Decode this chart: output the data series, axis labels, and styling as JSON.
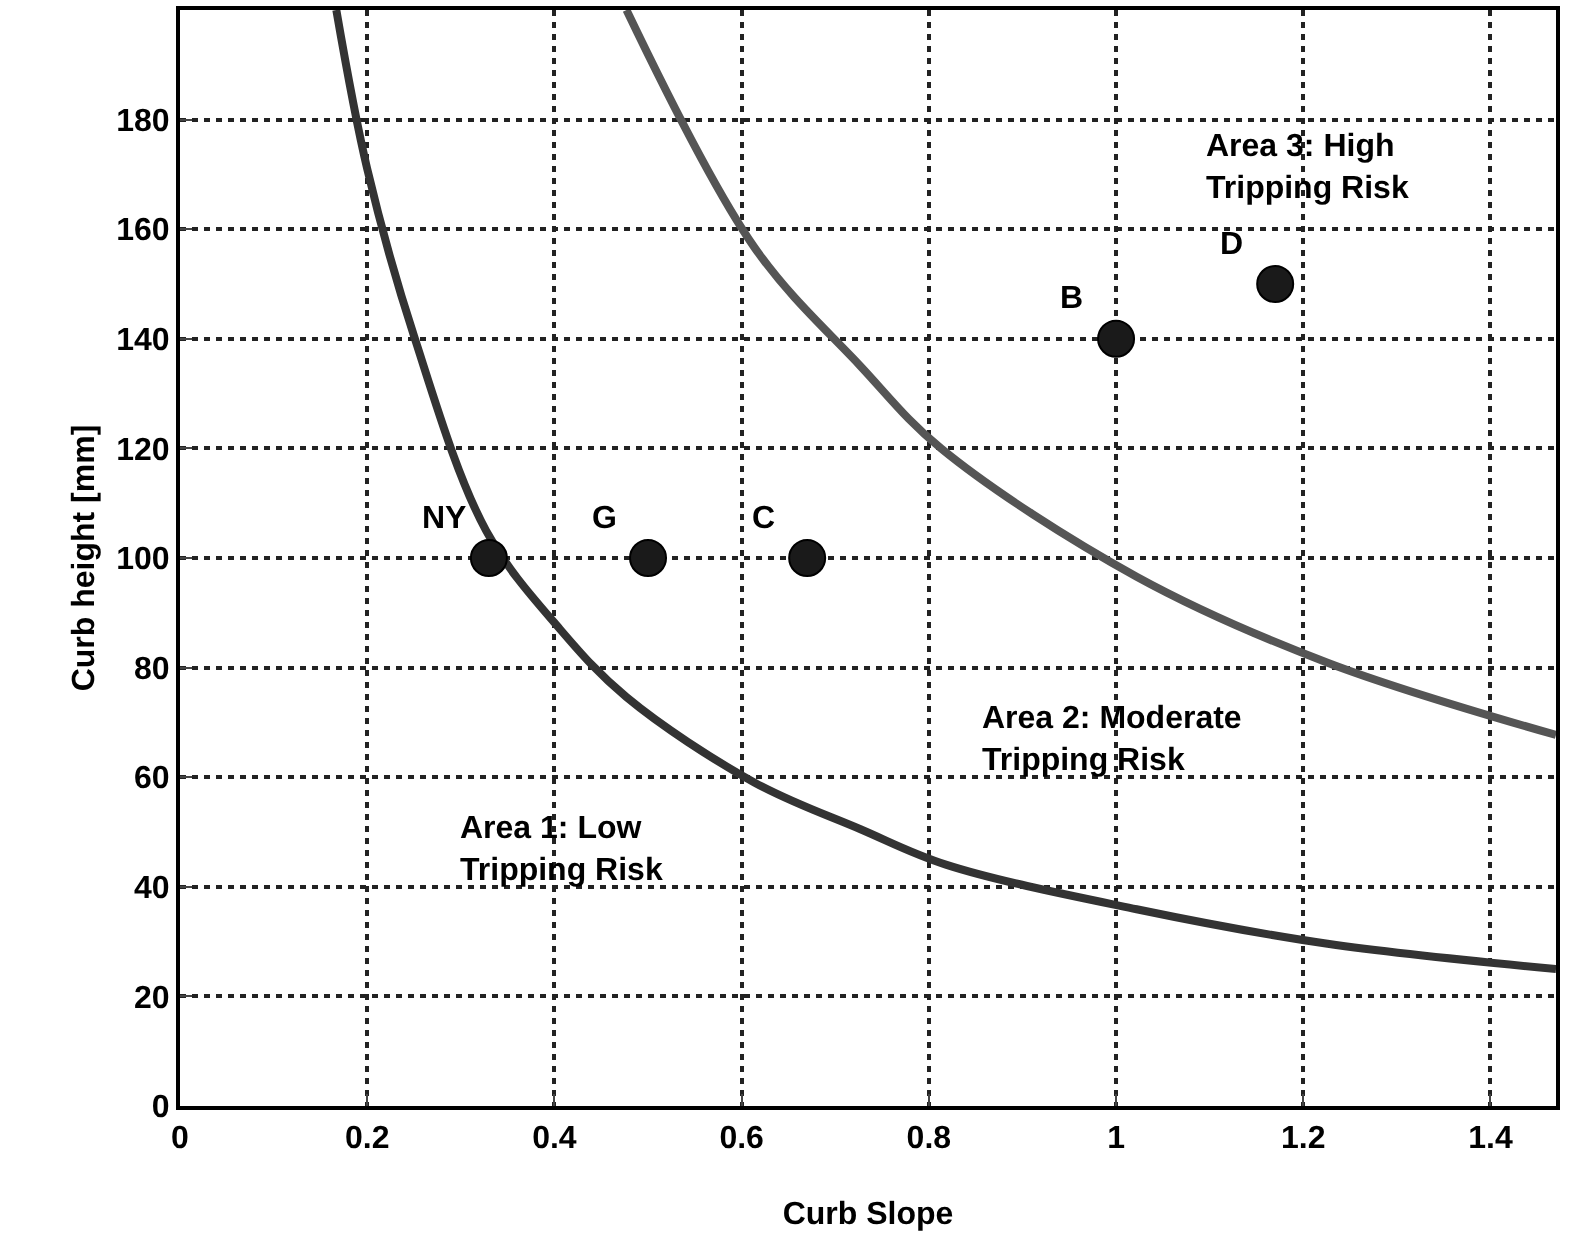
{
  "chart_data": {
    "type": "scatter",
    "xlabel": "Curb Slope",
    "ylabel": "Curb height [mm]",
    "xlim": [
      0,
      1.47
    ],
    "xticks": [
      0,
      0.2,
      0.4,
      0.6,
      0.8,
      1,
      1.2,
      1.4
    ],
    "ylim": [
      0,
      200
    ],
    "yticks": [
      0,
      20,
      40,
      60,
      80,
      100,
      120,
      140,
      160,
      180
    ],
    "grid": true,
    "line_style": "dotted",
    "series": [
      {
        "type": "line",
        "color": "#333333",
        "line_style": "solid",
        "x": [
          0.167,
          0.2,
          0.25,
          0.327,
          0.406,
          0.477,
          0.614,
          0.727,
          0.819,
          1.022,
          1.226,
          1.47
        ],
        "values": [
          200,
          171,
          140.5,
          105,
          87,
          74.6,
          59,
          50.5,
          44,
          35.9,
          29.6,
          25
        ]
      },
      {
        "type": "line",
        "color": "#555555",
        "line_style": "solid",
        "x": [
          0.477,
          0.614,
          0.727,
          0.813,
          1.022,
          1.226,
          1.47
        ],
        "values": [
          200,
          156.6,
          135,
          120,
          96.6,
          80.9,
          67.7
        ]
      },
      {
        "color": "#1a1a1a",
        "marker": "circle",
        "x": [
          0.33,
          0.5,
          0.67,
          1,
          1.17
        ],
        "values": [
          100,
          100,
          100,
          140,
          150
        ]
      }
    ],
    "annotations": [
      {
        "text": "NY",
        "x": 0.33,
        "y": 100
      },
      {
        "text": "G",
        "x": 0.5,
        "y": 100
      },
      {
        "text": "C",
        "x": 0.67,
        "y": 100
      },
      {
        "text": "B",
        "x": 1,
        "y": 140
      },
      {
        "text": "D",
        "x": 1.17,
        "y": 150
      },
      "Area 1: Low\nTripping Risk",
      "Area 2: Moderate\nTripping Risk",
      "Area 3: High\nTripping Risk"
    ]
  }
}
